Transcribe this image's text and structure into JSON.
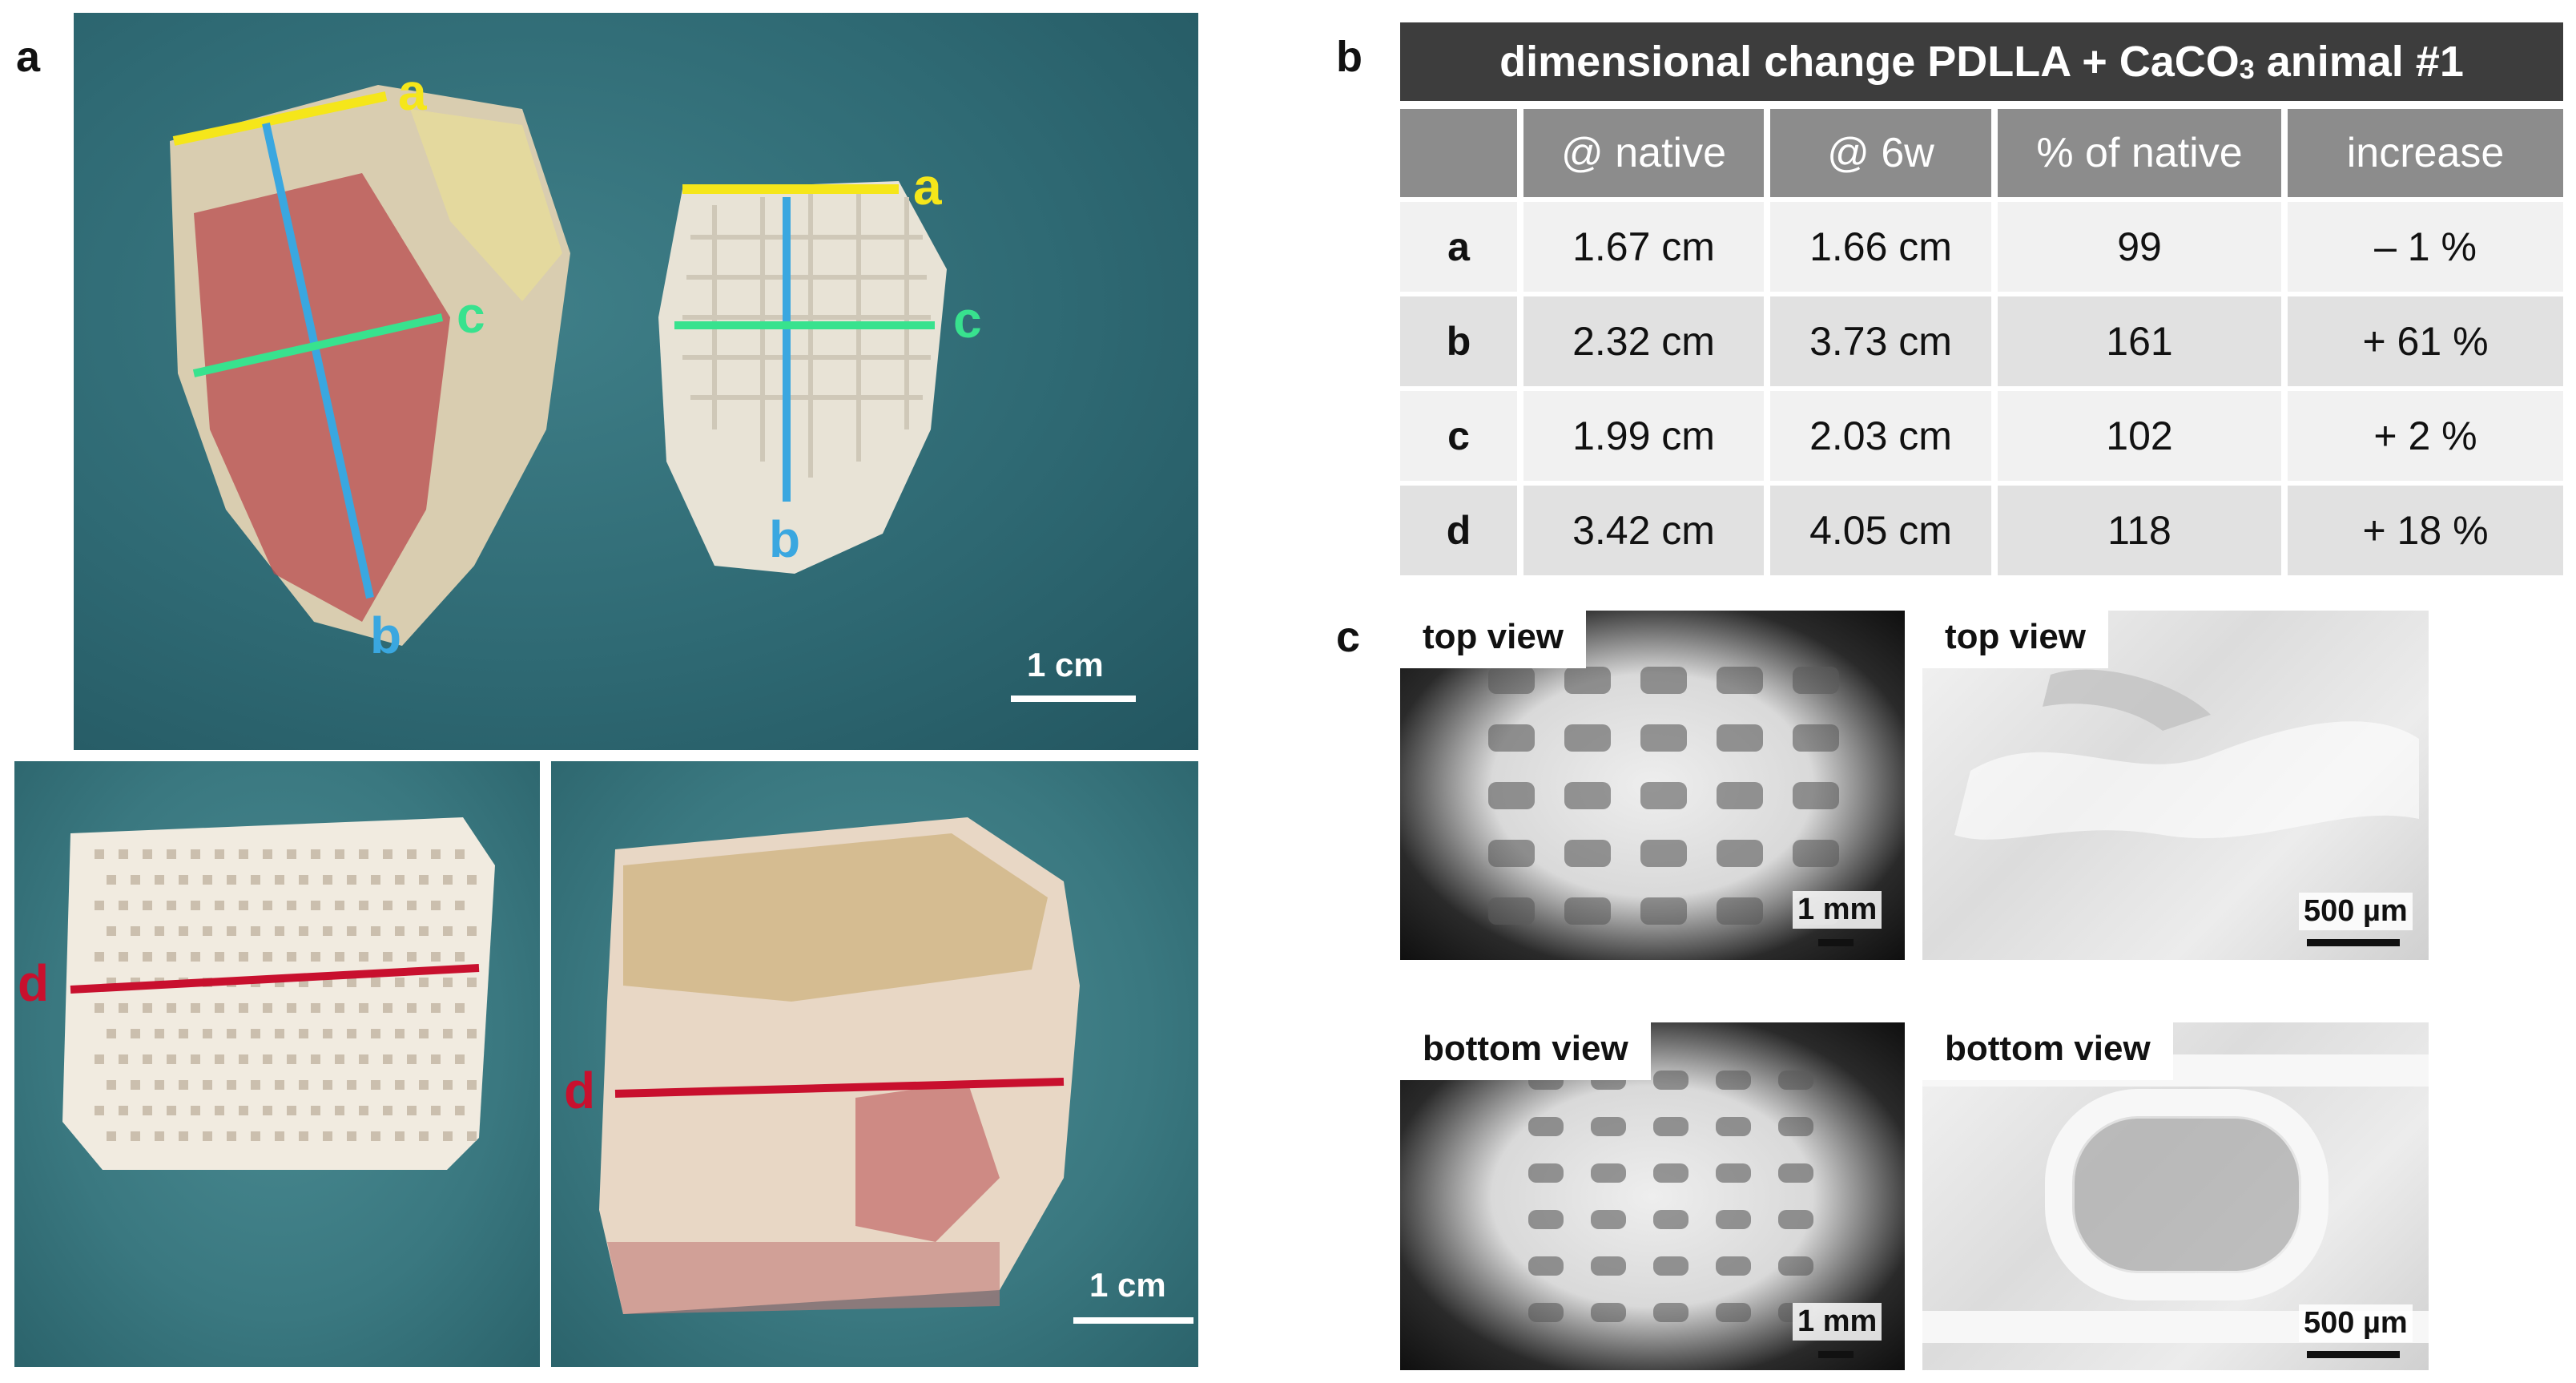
{
  "panel_labels": {
    "a": "a",
    "b": "b",
    "c": "c"
  },
  "panel_a": {
    "top_photo": {
      "line_labels": {
        "a1": "a",
        "a2": "a",
        "b1": "b",
        "b2": "b",
        "c1": "c",
        "c2": "c"
      },
      "scale_bar": "1 cm"
    },
    "bottom_left_photo": {
      "line_label": "d"
    },
    "bottom_right_photo": {
      "line_label": "d",
      "scale_bar": "1 cm"
    },
    "colors": {
      "a": "#f5e61a",
      "b": "#3aa7e0",
      "c": "#38e28e",
      "d": "#c8102e"
    }
  },
  "panel_b": {
    "title_main": "dimensional change PDLLA + CaCO",
    "title_sub": "3",
    "title_tail": " animal #1",
    "headers": [
      "",
      "@ native",
      "@ 6w",
      "% of native",
      "increase"
    ],
    "rows": [
      {
        "label": "a",
        "native": "1.67 cm",
        "w6": "1.66 cm",
        "pct": "99",
        "increase": "– 1 %"
      },
      {
        "label": "b",
        "native": "2.32 cm",
        "w6": "3.73 cm",
        "pct": "161",
        "increase": "+ 61 %"
      },
      {
        "label": "c",
        "native": "1.99 cm",
        "w6": "2.03 cm",
        "pct": "102",
        "increase": "+ 2 %"
      },
      {
        "label": "d",
        "native": "3.42 cm",
        "w6": "4.05 cm",
        "pct": "118",
        "increase": "+ 18 %"
      }
    ]
  },
  "panel_c": {
    "images": [
      {
        "label": "top view",
        "scale": "1 mm"
      },
      {
        "label": "top view",
        "scale": "500 µm"
      },
      {
        "label": "bottom view",
        "scale": "1 mm"
      },
      {
        "label": "bottom view",
        "scale": "500 µm"
      }
    ]
  }
}
